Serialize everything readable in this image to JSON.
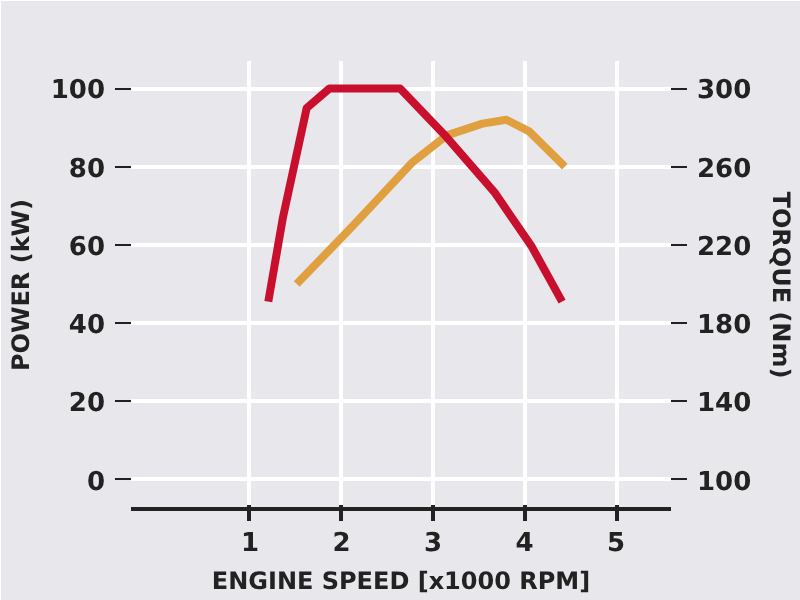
{
  "chart_data": {
    "type": "line",
    "xlabel": "ENGINE SPEED [x1000 RPM]",
    "ylabel": "POWER (kW)",
    "y2label": "TORQUE (Nm)",
    "xlim": [
      -0.3,
      5.6
    ],
    "xticks": [
      1,
      2,
      3,
      4,
      5
    ],
    "ylim": [
      -7.5,
      107
    ],
    "yticks": [
      0,
      20,
      40,
      60,
      80,
      100
    ],
    "y2lim": [
      85,
      314
    ],
    "y2ticks": [
      100,
      140,
      180,
      220,
      260,
      300
    ],
    "grid": true,
    "marker": "none",
    "line_style": "solid",
    "series": [
      {
        "color": "#e0a040",
        "x": [
          1.51,
          2.13,
          2.77,
          3.15,
          3.54,
          3.8,
          4.05,
          4.44
        ],
        "values": [
          50,
          65,
          81,
          88,
          91,
          92,
          89,
          80
        ]
      },
      {
        "color": "#c8102e",
        "axis": "y2",
        "x": [
          1.2,
          1.36,
          1.62,
          1.87,
          2.64,
          3.15,
          3.67,
          4.08,
          4.41
        ],
        "values": [
          191,
          234,
          290,
          300,
          300,
          275,
          247,
          219,
          191
        ]
      }
    ]
  }
}
